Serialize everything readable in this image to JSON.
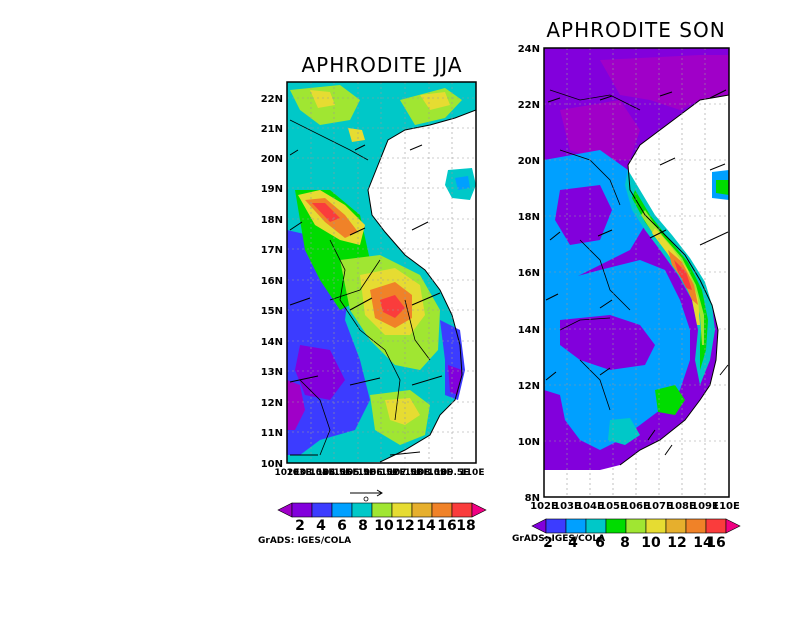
{
  "colors": {
    "c1": "#a000c8",
    "c2": "#8200dc",
    "c3": "#3c3cff",
    "c4": "#00a0ff",
    "c5": "#00c8c8",
    "c6": "#00dc00",
    "c7": "#a0e632",
    "c8": "#e6dc32",
    "c9": "#e6af2d",
    "c10": "#f08228",
    "c11": "#fa3c3c",
    "c12": "#f00082",
    "land_line": "#000000",
    "grid": "#999999"
  },
  "panels": [
    {
      "id": "jja",
      "title": "APHRODITE JJA",
      "lat_labels": [
        "10N",
        "11N",
        "12N",
        "13N",
        "14N",
        "15N",
        "16N",
        "17N",
        "18N",
        "19N",
        "20N",
        "21N",
        "22N"
      ],
      "lon_labels": [
        "102E",
        "103E",
        "103.5E",
        "104E",
        "104.5E",
        "105E",
        "105.5E",
        "106E",
        "106.5E",
        "107E",
        "107.5E",
        "108E",
        "108.5E",
        "109E",
        "109.5E",
        "110E"
      ],
      "lat_range": [
        10,
        22.6
      ],
      "lon_range": [
        102,
        110
      ],
      "colorbar_labels": [
        "2",
        "4",
        "6",
        "8",
        "10",
        "12",
        "14",
        "16",
        "18"
      ],
      "credit": "GrADS: IGES/COLA"
    },
    {
      "id": "son",
      "title": "APHRODITE SON",
      "lat_labels": [
        "8N",
        "10N",
        "12N",
        "14N",
        "16N",
        "18N",
        "20N",
        "22N",
        "24N"
      ],
      "lon_labels": [
        "102E",
        "103E",
        "104E",
        "105E",
        "106E",
        "107E",
        "108E",
        "109E",
        "110E"
      ],
      "lat_range": [
        8,
        24
      ],
      "lon_range": [
        102,
        110
      ],
      "colorbar_labels": [
        "2",
        "4",
        "6",
        "8",
        "10",
        "12",
        "14",
        "16"
      ],
      "credit": "GrADS: IGES/COLA"
    }
  ]
}
